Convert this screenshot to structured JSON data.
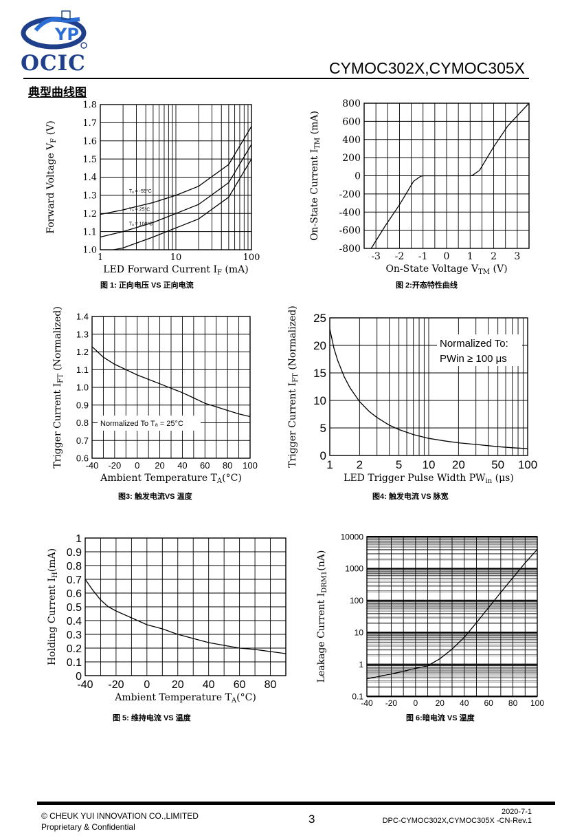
{
  "header": {
    "logo_text": "OCIC",
    "doc_title": "CYMOC302X,CYMOC305X",
    "section_title": "典型曲线图"
  },
  "charts": [
    {
      "id": "fig1",
      "caption": "图 1: 正向电压 VS 正向电流",
      "chart_data": {
        "type": "line",
        "xscale": "log",
        "xlim": [
          1,
          100
        ],
        "ylim": [
          1.0,
          1.8
        ],
        "xticks": [
          {
            "v": 1,
            "t": "1"
          },
          {
            "v": 10,
            "t": "10"
          },
          {
            "v": 100,
            "t": "100"
          }
        ],
        "yticks": [
          {
            "v": 1.0,
            "t": "1.0"
          },
          {
            "v": 1.1,
            "t": "1.1"
          },
          {
            "v": 1.2,
            "t": "1.2"
          },
          {
            "v": 1.3,
            "t": "1.3"
          },
          {
            "v": 1.4,
            "t": "1.4"
          },
          {
            "v": 1.5,
            "t": "1.5"
          },
          {
            "v": 1.6,
            "t": "1.6"
          },
          {
            "v": 1.7,
            "t": "1.7"
          },
          {
            "v": 1.8,
            "t": "1.8"
          }
        ],
        "xlabel": "LED Forward Current  I",
        "xlabel_sub": "F",
        "xlabel_tail": " (mA)",
        "ylabel": "Forward Voltage  V",
        "ylabel_sub": "F",
        "ylabel_tail": " (V)",
        "grid": true,
        "series": [
          {
            "name": "Tₐ = -55°C",
            "x": [
              1,
              2,
              5,
              10,
              20,
              50,
              100
            ],
            "y": [
              1.195,
              1.22,
              1.26,
              1.3,
              1.35,
              1.47,
              1.68
            ]
          },
          {
            "name": "Tₐ = 25°C",
            "x": [
              1,
              2,
              5,
              10,
              20,
              50,
              100
            ],
            "y": [
              1.07,
              1.1,
              1.15,
              1.2,
              1.25,
              1.37,
              1.58
            ]
          },
          {
            "name": "Tₐ = 100°C",
            "x": [
              1.5,
              2,
              5,
              10,
              20,
              50,
              100
            ],
            "y": [
              1.0,
              1.01,
              1.07,
              1.12,
              1.17,
              1.29,
              1.5
            ]
          }
        ]
      }
    },
    {
      "id": "fig2",
      "caption": "图 2:开态特性曲线",
      "chart_data": {
        "type": "line",
        "xlim": [
          -3.5,
          3.5
        ],
        "ylim": [
          -800,
          800
        ],
        "xticks": [
          {
            "v": -3,
            "t": "-3"
          },
          {
            "v": -2,
            "t": "-2"
          },
          {
            "v": -1,
            "t": "-1"
          },
          {
            "v": 0,
            "t": "0"
          },
          {
            "v": 1,
            "t": "1"
          },
          {
            "v": 2,
            "t": "2"
          },
          {
            "v": 3,
            "t": "3"
          }
        ],
        "yticks": [
          {
            "v": -800,
            "t": "-800"
          },
          {
            "v": -600,
            "t": "-600"
          },
          {
            "v": -400,
            "t": "-400"
          },
          {
            "v": -200,
            "t": "-200"
          },
          {
            "v": 0,
            "t": "0"
          },
          {
            "v": 200,
            "t": "200"
          },
          {
            "v": 400,
            "t": "400"
          },
          {
            "v": 600,
            "t": "600"
          },
          {
            "v": 800,
            "t": "800"
          }
        ],
        "xlabel": "On-State Voltage  V",
        "xlabel_sub": "TM",
        "xlabel_tail": " (V)",
        "ylabel": "On-State Current  I",
        "ylabel_sub": "TM",
        "ylabel_tail": " (mA)",
        "grid": true,
        "series": [
          {
            "x": [
              -3.2,
              -2.6,
              -2,
              -1.4,
              -1.1,
              -1,
              1,
              1.1,
              1.4,
              2,
              2.6,
              3.5
            ],
            "y": [
              -800,
              -550,
              -320,
              -60,
              -5,
              0,
              0,
              5,
              60,
              320,
              550,
              800
            ]
          }
        ]
      }
    },
    {
      "id": "fig3",
      "caption": "图3: 触发电流VS 温度",
      "chart_data": {
        "type": "line",
        "xlim": [
          -40,
          100
        ],
        "ylim": [
          0.6,
          1.4
        ],
        "xticks": [
          {
            "v": -40,
            "t": "-40"
          },
          {
            "v": -20,
            "t": "-20"
          },
          {
            "v": 0,
            "t": "0"
          },
          {
            "v": 20,
            "t": "20"
          },
          {
            "v": 40,
            "t": "40"
          },
          {
            "v": 60,
            "t": "60"
          },
          {
            "v": 80,
            "t": "80"
          },
          {
            "v": 100,
            "t": "100"
          }
        ],
        "yticks": [
          {
            "v": 0.6,
            "t": "0.6"
          },
          {
            "v": 0.7,
            "t": "0.7"
          },
          {
            "v": 0.8,
            "t": "0.8"
          },
          {
            "v": 0.9,
            "t": "0.9"
          },
          {
            "v": 1.0,
            "t": "1.0"
          },
          {
            "v": 1.1,
            "t": "1.1"
          },
          {
            "v": 1.2,
            "t": "1.2"
          },
          {
            "v": 1.3,
            "t": "1.3"
          },
          {
            "v": 1.4,
            "t": "1.4"
          }
        ],
        "xlabel": "Ambient Temperature  T",
        "xlabel_sub": "A",
        "xlabel_tail": "(°C)",
        "ylabel": "Trigger Current  I",
        "ylabel_sub": "FT",
        "ylabel_tail": " (Normalized)",
        "grid": true,
        "annotation": "Normalized To Tₐ = 25°C",
        "series": [
          {
            "x": [
              -40,
              -30,
              -20,
              -10,
              0,
              10,
              20,
              30,
              40,
              50,
              60,
              70,
              80,
              90,
              100
            ],
            "y": [
              1.23,
              1.17,
              1.13,
              1.1,
              1.07,
              1.045,
              1.02,
              0.995,
              0.97,
              0.94,
              0.91,
              0.89,
              0.87,
              0.85,
              0.835
            ]
          }
        ]
      }
    },
    {
      "id": "fig4",
      "caption": "图4: 触发电流 VS 脉宽",
      "chart_data": {
        "type": "line",
        "xscale": "log",
        "xlim": [
          1,
          100
        ],
        "ylim": [
          0,
          25
        ],
        "xticks": [
          {
            "v": 1,
            "t": "1"
          },
          {
            "v": 2,
            "t": "2"
          },
          {
            "v": 5,
            "t": "5"
          },
          {
            "v": 10,
            "t": "10"
          },
          {
            "v": 20,
            "t": "20"
          },
          {
            "v": 50,
            "t": "50"
          },
          {
            "v": 100,
            "t": "100"
          }
        ],
        "yticks": [
          {
            "v": 0,
            "t": "0"
          },
          {
            "v": 5,
            "t": "5"
          },
          {
            "v": 10,
            "t": "10"
          },
          {
            "v": 15,
            "t": "15"
          },
          {
            "v": 20,
            "t": "20"
          },
          {
            "v": 25,
            "t": "25"
          }
        ],
        "xlabel": "LED Trigger Pulse Width  PW",
        "xlabel_sub": "in",
        "xlabel_tail": " (μs)",
        "ylabel": "Trigger Current  I",
        "ylabel_sub": "FT",
        "ylabel_tail": " (Normalized)",
        "grid": true,
        "annotation_lines": [
          "Normalized To:",
          "PWin ≥ 100 μs"
        ],
        "series": [
          {
            "x": [
              1,
              1.1,
              1.2,
              1.4,
              1.6,
              2,
              2.5,
              3,
              4,
              5,
              7,
              10,
              15,
              20,
              30,
              50,
              70,
              100
            ],
            "y": [
              23,
              19.5,
              17.3,
              14.3,
              12.3,
              9.8,
              8,
              6.9,
              5.5,
              4.7,
              3.8,
              3.1,
              2.6,
              2.3,
              2.0,
              1.6,
              1.4,
              1.25
            ]
          }
        ]
      }
    },
    {
      "id": "fig5",
      "caption": "图 5:  维持电流 VS 温度",
      "chart_data": {
        "type": "line",
        "xlim": [
          -40,
          90
        ],
        "ylim": [
          0,
          1
        ],
        "xticks": [
          {
            "v": -40,
            "t": "-40"
          },
          {
            "v": -20,
            "t": "-20"
          },
          {
            "v": 0,
            "t": "0"
          },
          {
            "v": 20,
            "t": "20"
          },
          {
            "v": 40,
            "t": "40"
          },
          {
            "v": 60,
            "t": "60"
          },
          {
            "v": 80,
            "t": "80"
          }
        ],
        "yticks": [
          {
            "v": 0,
            "t": "0"
          },
          {
            "v": 0.1,
            "t": "0.1"
          },
          {
            "v": 0.2,
            "t": "0.2"
          },
          {
            "v": 0.3,
            "t": "0.3"
          },
          {
            "v": 0.4,
            "t": "0.4"
          },
          {
            "v": 0.5,
            "t": "0.5"
          },
          {
            "v": 0.6,
            "t": "0.6"
          },
          {
            "v": 0.7,
            "t": "0.7"
          },
          {
            "v": 0.8,
            "t": "0.8"
          },
          {
            "v": 0.9,
            "t": "0.9"
          },
          {
            "v": 1,
            "t": "1"
          }
        ],
        "xlabel": "Ambient Temperature  T",
        "xlabel_sub": "A",
        "xlabel_tail": "(°C)",
        "ylabel": "Holding Current  I",
        "ylabel_sub": "H",
        "ylabel_tail": "(mA)",
        "grid": true,
        "series": [
          {
            "x": [
              -40,
              -35,
              -30,
              -25,
              -20,
              -10,
              0,
              10,
              20,
              30,
              40,
              50,
              60,
              70,
              80,
              90
            ],
            "y": [
              0.7,
              0.62,
              0.55,
              0.5,
              0.47,
              0.42,
              0.37,
              0.34,
              0.3,
              0.27,
              0.24,
              0.22,
              0.2,
              0.19,
              0.175,
              0.16
            ]
          }
        ]
      }
    },
    {
      "id": "fig6",
      "caption": "图 6:暗电流 VS 温度",
      "chart_data": {
        "type": "line",
        "yscale": "log",
        "xlim": [
          -40,
          100
        ],
        "ylim": [
          0.1,
          10000
        ],
        "xticks": [
          {
            "v": -40,
            "t": "-40"
          },
          {
            "v": -20,
            "t": "-20"
          },
          {
            "v": 0,
            "t": "0"
          },
          {
            "v": 20,
            "t": "20"
          },
          {
            "v": 40,
            "t": "40"
          },
          {
            "v": 60,
            "t": "60"
          },
          {
            "v": 80,
            "t": "80"
          },
          {
            "v": 100,
            "t": "100"
          }
        ],
        "yticks": [
          {
            "v": 0.1,
            "t": "0.1"
          },
          {
            "v": 1,
            "t": "1"
          },
          {
            "v": 10,
            "t": "10"
          },
          {
            "v": 100,
            "t": "100"
          },
          {
            "v": 1000,
            "t": "1000"
          },
          {
            "v": 10000,
            "t": "10000"
          }
        ],
        "xlabel": "",
        "ylabel": "Leakage Current  I",
        "ylabel_sub": "DRM1",
        "ylabel_tail": "(nA)",
        "grid": true,
        "series": [
          {
            "x": [
              -40,
              -30,
              -20,
              -10,
              0,
              10,
              20,
              30,
              40,
              50,
              60,
              70,
              80,
              90,
              100
            ],
            "y": [
              0.35,
              0.42,
              0.5,
              0.6,
              0.75,
              0.9,
              1.5,
              3,
              7,
              20,
              60,
              180,
              520,
              1500,
              4000
            ]
          }
        ]
      }
    }
  ],
  "footer": {
    "copyright": "© CHEUK YUI INNOVATION CO.,LIMITED",
    "confidential": "Proprietary & Confidential",
    "page_number": "3",
    "date": "2020-7-1",
    "doc_id": "DPC-CYMOC302X,CYMOC305X -CN-Rev.1"
  }
}
